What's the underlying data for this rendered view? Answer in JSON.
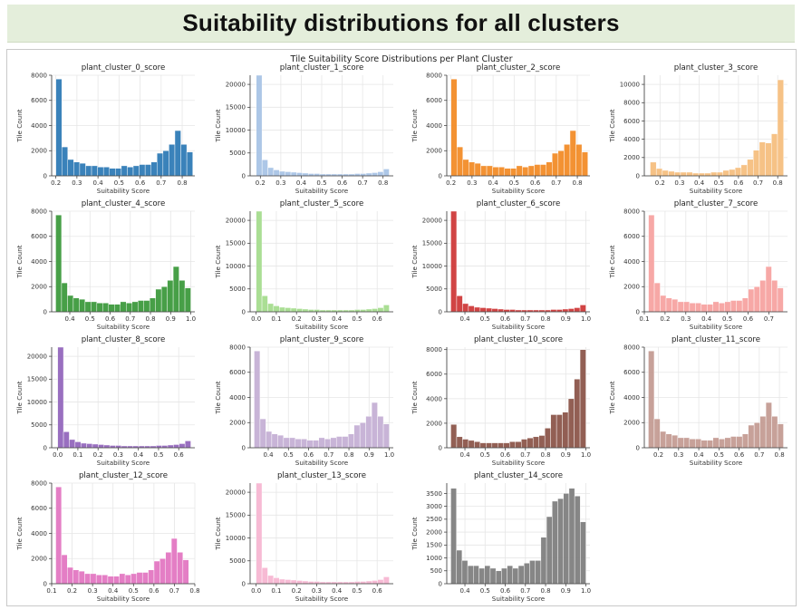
{
  "page": {
    "title": "Suitability distributions for all clusters"
  },
  "chart_data": {
    "type": "bar",
    "title": "Tile Suitability Score Distributions per Plant Cluster",
    "xlabel": "Suitability Score",
    "ylabel": "Tile Count",
    "grid": true,
    "charts": [
      {
        "title": "plant_cluster_0_score",
        "color": "#2f7bb6",
        "alpha": 0.95,
        "x_range": [
          0.2,
          0.85
        ],
        "xlim": [
          0.18,
          0.86
        ],
        "xticks": [
          0.2,
          0.3,
          0.4,
          0.5,
          0.6,
          0.7,
          0.8
        ],
        "ylim": [
          0,
          8000
        ],
        "yticks": [
          0,
          2000,
          4000,
          6000,
          8000
        ],
        "values": [
          7700,
          2300,
          1300,
          1100,
          1000,
          800,
          800,
          700,
          700,
          600,
          600,
          800,
          700,
          800,
          900,
          900,
          1100,
          1800,
          2000,
          2500,
          3600,
          2500,
          1900
        ]
      },
      {
        "title": "plant_cluster_1_score",
        "color": "#a9c4e6",
        "alpha": 0.95,
        "x_range": [
          0.18,
          0.83
        ],
        "xlim": [
          0.15,
          0.85
        ],
        "xticks": [
          0.2,
          0.3,
          0.4,
          0.5,
          0.6,
          0.7,
          0.8
        ],
        "ylim": [
          0,
          22000
        ],
        "yticks": [
          0,
          5000,
          10000,
          15000,
          20000
        ],
        "values": [
          22000,
          3500,
          1800,
          1300,
          1000,
          900,
          800,
          700,
          600,
          500,
          500,
          400,
          400,
          400,
          400,
          400,
          400,
          500,
          500,
          600,
          700,
          900,
          1500
        ]
      },
      {
        "title": "plant_cluster_2_score",
        "color": "#f28c28",
        "alpha": 0.95,
        "x_range": [
          0.2,
          0.85
        ],
        "xlim": [
          0.18,
          0.86
        ],
        "xticks": [
          0.2,
          0.3,
          0.4,
          0.5,
          0.6,
          0.7,
          0.8
        ],
        "ylim": [
          0,
          8000
        ],
        "yticks": [
          0,
          2000,
          4000,
          6000,
          8000
        ],
        "values": [
          7700,
          2300,
          1300,
          1100,
          1000,
          800,
          800,
          700,
          700,
          600,
          600,
          800,
          700,
          800,
          900,
          900,
          1100,
          1800,
          2000,
          2500,
          3600,
          2500,
          1900
        ]
      },
      {
        "title": "plant_cluster_3_score",
        "color": "#f6bf80",
        "alpha": 0.95,
        "x_range": [
          0.15,
          0.83
        ],
        "xlim": [
          0.12,
          0.85
        ],
        "xticks": [
          0.2,
          0.3,
          0.4,
          0.5,
          0.6,
          0.7,
          0.8
        ],
        "ylim": [
          0,
          11000
        ],
        "yticks": [
          0,
          2000,
          4000,
          6000,
          8000,
          10000
        ],
        "values": [
          1500,
          800,
          600,
          500,
          400,
          400,
          400,
          300,
          300,
          300,
          400,
          400,
          600,
          700,
          900,
          1200,
          1800,
          2800,
          3700,
          3600,
          4600,
          10500
        ]
      },
      {
        "title": "plant_cluster_4_score",
        "color": "#3d9a3d",
        "alpha": 0.95,
        "x_range": [
          0.33,
          1.0
        ],
        "xlim": [
          0.31,
          1.02
        ],
        "xticks": [
          0.4,
          0.5,
          0.6,
          0.7,
          0.8,
          0.9,
          1.0
        ],
        "ylim": [
          0,
          8000
        ],
        "yticks": [
          0,
          2000,
          4000,
          6000,
          8000
        ],
        "values": [
          7700,
          2300,
          1300,
          1100,
          1000,
          800,
          800,
          700,
          700,
          600,
          600,
          800,
          700,
          800,
          900,
          900,
          1100,
          1800,
          2000,
          2500,
          3600,
          2500,
          1900
        ]
      },
      {
        "title": "plant_cluster_5_score",
        "color": "#a5dc8e",
        "alpha": 0.95,
        "x_range": [
          0.0,
          0.66
        ],
        "xlim": [
          -0.03,
          0.68
        ],
        "xticks": [
          0.0,
          0.1,
          0.2,
          0.3,
          0.4,
          0.5,
          0.6
        ],
        "ylim": [
          0,
          22000
        ],
        "yticks": [
          0,
          5000,
          10000,
          15000,
          20000
        ],
        "values": [
          22000,
          3500,
          1800,
          1300,
          1000,
          900,
          800,
          700,
          600,
          500,
          500,
          400,
          400,
          400,
          400,
          400,
          400,
          500,
          500,
          600,
          700,
          900,
          1500
        ]
      },
      {
        "title": "plant_cluster_6_score",
        "color": "#cf3a3a",
        "alpha": 0.95,
        "x_range": [
          0.33,
          1.0
        ],
        "xlim": [
          0.31,
          1.02
        ],
        "xticks": [
          0.4,
          0.5,
          0.6,
          0.7,
          0.8,
          0.9,
          1.0
        ],
        "ylim": [
          0,
          22000
        ],
        "yticks": [
          0,
          5000,
          10000,
          15000,
          20000
        ],
        "values": [
          22000,
          3500,
          1800,
          1300,
          1000,
          900,
          800,
          700,
          600,
          500,
          500,
          400,
          400,
          400,
          400,
          400,
          400,
          500,
          500,
          600,
          700,
          900,
          1500
        ]
      },
      {
        "title": "plant_cluster_7_score",
        "color": "#f7a3a1",
        "alpha": 0.95,
        "x_range": [
          0.12,
          0.77
        ],
        "xlim": [
          0.1,
          0.79
        ],
        "xticks": [
          0.1,
          0.2,
          0.3,
          0.4,
          0.5,
          0.6,
          0.7
        ],
        "ylim": [
          0,
          8000
        ],
        "yticks": [
          0,
          2000,
          4000,
          6000,
          8000
        ],
        "values": [
          7700,
          2300,
          1300,
          1100,
          1000,
          800,
          800,
          700,
          700,
          600,
          600,
          800,
          700,
          800,
          900,
          900,
          1100,
          1800,
          2000,
          2500,
          3600,
          2500,
          1900
        ]
      },
      {
        "title": "plant_cluster_8_score",
        "color": "#9467bd",
        "alpha": 0.95,
        "x_range": [
          0.0,
          0.66
        ],
        "xlim": [
          -0.03,
          0.68
        ],
        "xticks": [
          0.0,
          0.1,
          0.2,
          0.3,
          0.4,
          0.5,
          0.6
        ],
        "ylim": [
          0,
          22000
        ],
        "yticks": [
          0,
          5000,
          10000,
          15000,
          20000
        ],
        "values": [
          22000,
          3500,
          1800,
          1300,
          1000,
          900,
          800,
          700,
          600,
          500,
          500,
          400,
          400,
          400,
          400,
          400,
          400,
          500,
          500,
          600,
          700,
          900,
          1500
        ]
      },
      {
        "title": "plant_cluster_9_score",
        "color": "#c5b0d5",
        "alpha": 0.95,
        "x_range": [
          0.33,
          1.0
        ],
        "xlim": [
          0.31,
          1.02
        ],
        "xticks": [
          0.4,
          0.5,
          0.6,
          0.7,
          0.8,
          0.9,
          1.0
        ],
        "ylim": [
          0,
          8000
        ],
        "yticks": [
          0,
          2000,
          4000,
          6000,
          8000
        ],
        "values": [
          7700,
          2300,
          1300,
          1100,
          1000,
          800,
          800,
          700,
          700,
          600,
          600,
          800,
          700,
          800,
          900,
          900,
          1100,
          1800,
          2000,
          2500,
          3600,
          2500,
          1900
        ]
      },
      {
        "title": "plant_cluster_10_score",
        "color": "#8c564b",
        "alpha": 0.95,
        "x_range": [
          0.33,
          1.0
        ],
        "xlim": [
          0.31,
          1.02
        ],
        "xticks": [
          0.4,
          0.5,
          0.6,
          0.7,
          0.8,
          0.9,
          1.0
        ],
        "ylim": [
          0,
          8200
        ],
        "yticks": [
          0,
          2000,
          4000,
          6000,
          8000
        ],
        "values": [
          1900,
          900,
          700,
          600,
          500,
          400,
          400,
          400,
          400,
          400,
          500,
          500,
          700,
          800,
          900,
          1000,
          1600,
          2700,
          2700,
          2900,
          4000,
          5600,
          8000
        ]
      },
      {
        "title": "plant_cluster_11_score",
        "color": "#c49c94",
        "alpha": 0.95,
        "x_range": [
          0.15,
          0.82
        ],
        "xlim": [
          0.13,
          0.84
        ],
        "xticks": [
          0.2,
          0.3,
          0.4,
          0.5,
          0.6,
          0.7,
          0.8
        ],
        "ylim": [
          0,
          8000
        ],
        "yticks": [
          0,
          2000,
          4000,
          6000,
          8000
        ],
        "values": [
          7700,
          2300,
          1300,
          1100,
          1000,
          800,
          800,
          700,
          700,
          600,
          600,
          800,
          700,
          800,
          900,
          900,
          1100,
          1800,
          2000,
          2500,
          3600,
          2500,
          1900
        ]
      },
      {
        "title": "plant_cluster_12_score",
        "color": "#e377c2",
        "alpha": 0.95,
        "x_range": [
          0.12,
          0.77
        ],
        "xlim": [
          0.1,
          0.8
        ],
        "xticks": [
          0.1,
          0.2,
          0.3,
          0.4,
          0.5,
          0.6,
          0.7,
          0.8
        ],
        "ylim": [
          0,
          8000
        ],
        "yticks": [
          0,
          2000,
          4000,
          6000,
          8000
        ],
        "values": [
          7700,
          2300,
          1300,
          1100,
          1000,
          800,
          800,
          700,
          700,
          600,
          600,
          800,
          700,
          800,
          900,
          900,
          1100,
          1800,
          2000,
          2500,
          3600,
          2500,
          1900
        ]
      },
      {
        "title": "plant_cluster_13_score",
        "color": "#f7b6d2",
        "alpha": 0.95,
        "x_range": [
          0.0,
          0.66
        ],
        "xlim": [
          -0.03,
          0.68
        ],
        "xticks": [
          0.0,
          0.1,
          0.2,
          0.3,
          0.4,
          0.5,
          0.6
        ],
        "ylim": [
          0,
          22000
        ],
        "yticks": [
          0,
          5000,
          10000,
          15000,
          20000
        ],
        "values": [
          22000,
          3500,
          1800,
          1300,
          1000,
          900,
          800,
          700,
          600,
          500,
          500,
          400,
          400,
          400,
          400,
          400,
          400,
          500,
          500,
          600,
          700,
          900,
          1500
        ]
      },
      {
        "title": "plant_cluster_14_score",
        "color": "#7f7f7f",
        "alpha": 0.95,
        "x_range": [
          0.33,
          1.0
        ],
        "xlim": [
          0.31,
          1.02
        ],
        "xticks": [
          0.4,
          0.5,
          0.6,
          0.7,
          0.8,
          0.9,
          1.0
        ],
        "ylim": [
          0,
          3900
        ],
        "yticks": [
          0,
          500,
          1000,
          1500,
          2000,
          2500,
          3000,
          3500
        ],
        "values": [
          3700,
          1300,
          900,
          700,
          700,
          600,
          700,
          600,
          500,
          600,
          700,
          600,
          700,
          800,
          900,
          900,
          1800,
          2600,
          3200,
          3300,
          3500,
          3700,
          3400,
          2400
        ]
      }
    ]
  }
}
